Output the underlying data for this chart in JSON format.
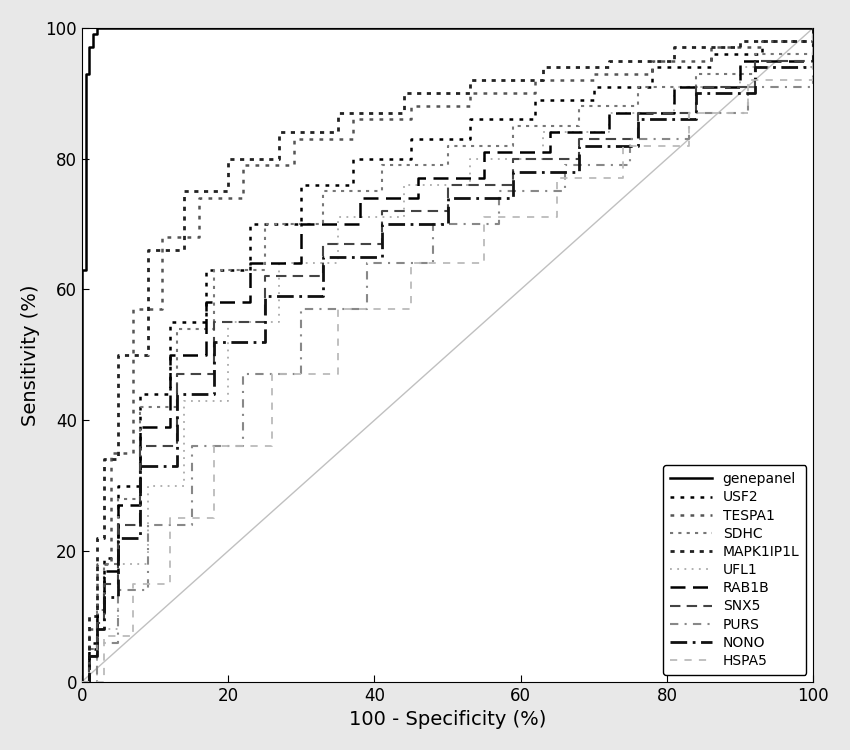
{
  "title": "",
  "xlabel": "100 - Specificity (%)",
  "ylabel": "Sensitivity (%)",
  "xlim": [
    0,
    100
  ],
  "ylim": [
    0,
    100
  ],
  "xticks": [
    0,
    20,
    40,
    60,
    80,
    100
  ],
  "yticks": [
    0,
    20,
    40,
    60,
    80,
    100
  ],
  "bg_color": "#e8e8e8",
  "plot_bg_color": "#ffffff",
  "curves": [
    {
      "name": "genepanel",
      "color": "#000000",
      "linestyle": "solid",
      "linewidth": 1.8,
      "dash_pattern": null,
      "points_x": [
        0,
        0,
        0.5,
        0.5,
        1,
        1,
        1.5,
        1.5,
        2,
        2,
        3,
        3,
        5,
        100
      ],
      "points_y": [
        0,
        63,
        63,
        93,
        93,
        97,
        97,
        99,
        99,
        100,
        100,
        100,
        100,
        100
      ]
    },
    {
      "name": "USF2",
      "color": "#000000",
      "linestyle": "dotted",
      "linewidth": 1.8,
      "dash_pattern": [
        1.5,
        2.5
      ],
      "points_x": [
        0,
        1,
        2,
        3,
        5,
        8,
        12,
        17,
        23,
        30,
        37,
        45,
        53,
        62,
        70,
        78,
        86,
        93,
        100
      ],
      "points_y": [
        0,
        6,
        12,
        19,
        30,
        44,
        55,
        63,
        70,
        76,
        80,
        83,
        86,
        89,
        91,
        94,
        96,
        98,
        100
      ]
    },
    {
      "name": "TESPA1",
      "color": "#555555",
      "linestyle": "dotted",
      "linewidth": 1.8,
      "dash_pattern": [
        1.5,
        2.5
      ],
      "points_x": [
        0,
        1,
        2,
        4,
        7,
        11,
        16,
        22,
        29,
        37,
        45,
        53,
        62,
        70,
        78,
        86,
        93,
        100
      ],
      "points_y": [
        0,
        8,
        18,
        35,
        57,
        68,
        74,
        79,
        83,
        86,
        88,
        90,
        92,
        93,
        95,
        97,
        98,
        100
      ]
    },
    {
      "name": "SDHC",
      "color": "#777777",
      "linestyle": "dotted",
      "linewidth": 1.5,
      "dash_pattern": [
        1.5,
        2.5
      ],
      "points_x": [
        0,
        1,
        2,
        3,
        5,
        8,
        13,
        18,
        25,
        33,
        41,
        50,
        59,
        68,
        76,
        84,
        92,
        100
      ],
      "points_y": [
        0,
        5,
        11,
        18,
        28,
        42,
        54,
        63,
        70,
        75,
        79,
        82,
        85,
        88,
        91,
        93,
        96,
        100
      ]
    },
    {
      "name": "MAPK1IP1L",
      "color": "#222222",
      "linestyle": "dotted",
      "linewidth": 2.0,
      "dash_pattern": [
        1.5,
        2.0
      ],
      "points_x": [
        0,
        1,
        2,
        3,
        5,
        9,
        14,
        20,
        27,
        35,
        44,
        53,
        63,
        72,
        81,
        90,
        100
      ],
      "points_y": [
        0,
        10,
        22,
        34,
        50,
        66,
        75,
        80,
        84,
        87,
        90,
        92,
        94,
        95,
        97,
        98,
        100
      ]
    },
    {
      "name": "UFL1",
      "color": "#aaaaaa",
      "linestyle": "dotted",
      "linewidth": 1.3,
      "dash_pattern": [
        1.0,
        3.0
      ],
      "points_x": [
        0,
        2,
        5,
        9,
        14,
        20,
        27,
        35,
        44,
        53,
        63,
        72,
        81,
        90,
        100
      ],
      "points_y": [
        0,
        8,
        18,
        30,
        43,
        55,
        64,
        71,
        76,
        80,
        84,
        87,
        91,
        94,
        100
      ]
    },
    {
      "name": "RAB1B",
      "color": "#000000",
      "linestyle": "dashed",
      "linewidth": 1.8,
      "dash_pattern": [
        6,
        3
      ],
      "points_x": [
        0,
        1,
        2,
        3,
        5,
        8,
        12,
        17,
        23,
        30,
        38,
        46,
        55,
        64,
        72,
        81,
        90,
        100
      ],
      "points_y": [
        0,
        5,
        10,
        17,
        27,
        39,
        50,
        58,
        64,
        70,
        74,
        77,
        81,
        84,
        87,
        91,
        95,
        100
      ]
    },
    {
      "name": "SNX5",
      "color": "#444444",
      "linestyle": "dashed",
      "linewidth": 1.5,
      "dash_pattern": [
        5,
        3
      ],
      "points_x": [
        0,
        1,
        2,
        3,
        5,
        8,
        13,
        18,
        25,
        33,
        41,
        50,
        59,
        68,
        76,
        84,
        92,
        100
      ],
      "points_y": [
        0,
        4,
        9,
        15,
        24,
        36,
        47,
        55,
        62,
        67,
        72,
        76,
        80,
        83,
        87,
        91,
        95,
        100
      ]
    },
    {
      "name": "PURS",
      "color": "#888888",
      "linestyle": "dashed",
      "linewidth": 1.5,
      "dash_pattern": [
        4,
        3,
        1,
        3
      ],
      "points_x": [
        0,
        2,
        5,
        9,
        15,
        22,
        30,
        39,
        48,
        57,
        66,
        75,
        83,
        91,
        100
      ],
      "points_y": [
        0,
        6,
        14,
        24,
        36,
        47,
        57,
        64,
        70,
        75,
        79,
        83,
        87,
        91,
        100
      ]
    },
    {
      "name": "NONO",
      "color": "#111111",
      "linestyle": "dashed",
      "linewidth": 2.0,
      "dash_pattern": [
        6,
        2,
        1,
        2
      ],
      "points_x": [
        0,
        1,
        2,
        3,
        5,
        8,
        13,
        18,
        25,
        33,
        41,
        50,
        59,
        68,
        76,
        84,
        92,
        100
      ],
      "points_y": [
        0,
        4,
        8,
        13,
        22,
        33,
        44,
        52,
        59,
        65,
        70,
        74,
        78,
        82,
        86,
        90,
        94,
        100
      ]
    },
    {
      "name": "HSPA5",
      "color": "#bbbbbb",
      "linestyle": "dashed",
      "linewidth": 1.3,
      "dash_pattern": [
        4,
        4
      ],
      "points_x": [
        0,
        3,
        7,
        12,
        18,
        26,
        35,
        45,
        55,
        65,
        74,
        83,
        91,
        100
      ],
      "points_y": [
        0,
        7,
        15,
        25,
        36,
        47,
        57,
        64,
        71,
        77,
        82,
        87,
        92,
        100
      ]
    }
  ],
  "legend": {
    "loc": "lower right",
    "fontsize": 10,
    "frameon": true,
    "framealpha": 1.0,
    "edgecolor": "#000000"
  },
  "diagonal_color": "#c0c0c0",
  "axis_fontsize": 14,
  "tick_fontsize": 12
}
